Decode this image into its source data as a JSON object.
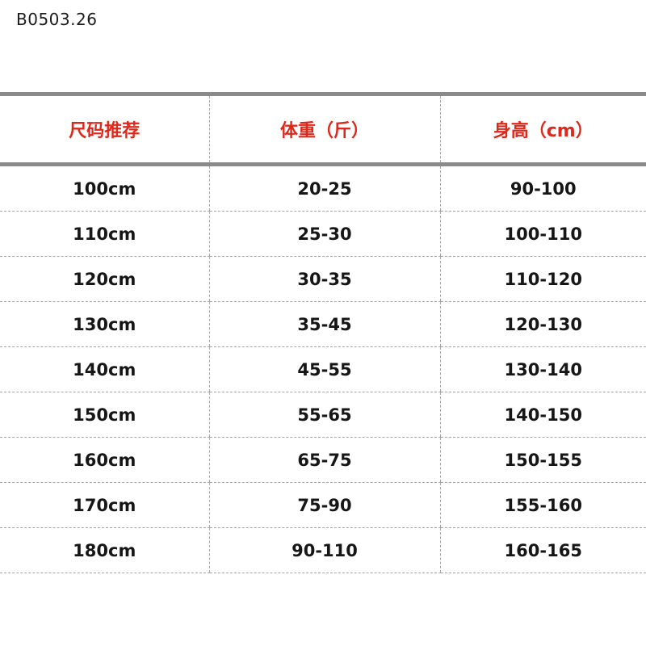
{
  "product_code": "B0503.26",
  "colors": {
    "header_text": "#dc291c",
    "body_text": "#161616",
    "thick_border": "#8a8a8a",
    "dashed_border": "#a6a6a6",
    "background": "#ffffff"
  },
  "chart_data": {
    "type": "table",
    "columns": [
      "尺码推荐",
      "体重（斤）",
      "身高（cm）"
    ],
    "rows": [
      [
        "100cm",
        "20-25",
        "90-100"
      ],
      [
        "110cm",
        "25-30",
        "100-110"
      ],
      [
        "120cm",
        "30-35",
        "110-120"
      ],
      [
        "130cm",
        "35-45",
        "120-130"
      ],
      [
        "140cm",
        "45-55",
        "130-140"
      ],
      [
        "150cm",
        "55-65",
        "140-150"
      ],
      [
        "160cm",
        "65-75",
        "150-155"
      ],
      [
        "170cm",
        "75-90",
        "155-160"
      ],
      [
        "180cm",
        "90-110",
        "160-165"
      ]
    ]
  }
}
